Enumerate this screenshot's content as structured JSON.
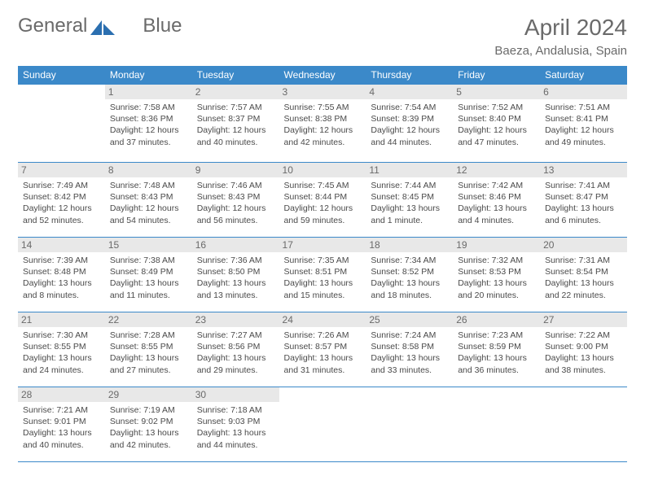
{
  "logo": {
    "text1": "General",
    "text2": "Blue",
    "brand_color": "#2b6fb0"
  },
  "title": "April 2024",
  "location": "Baeza, Andalusia, Spain",
  "colors": {
    "header_bg": "#3b89c9",
    "header_text": "#ffffff",
    "daynum_bg": "#e8e8e8",
    "text": "#4a4a4a",
    "rule": "#3b89c9"
  },
  "weekdays": [
    "Sunday",
    "Monday",
    "Tuesday",
    "Wednesday",
    "Thursday",
    "Friday",
    "Saturday"
  ],
  "start_offset": 1,
  "days": [
    {
      "n": 1,
      "sunrise": "7:58 AM",
      "sunset": "8:36 PM",
      "daylight": "12 hours and 37 minutes."
    },
    {
      "n": 2,
      "sunrise": "7:57 AM",
      "sunset": "8:37 PM",
      "daylight": "12 hours and 40 minutes."
    },
    {
      "n": 3,
      "sunrise": "7:55 AM",
      "sunset": "8:38 PM",
      "daylight": "12 hours and 42 minutes."
    },
    {
      "n": 4,
      "sunrise": "7:54 AM",
      "sunset": "8:39 PM",
      "daylight": "12 hours and 44 minutes."
    },
    {
      "n": 5,
      "sunrise": "7:52 AM",
      "sunset": "8:40 PM",
      "daylight": "12 hours and 47 minutes."
    },
    {
      "n": 6,
      "sunrise": "7:51 AM",
      "sunset": "8:41 PM",
      "daylight": "12 hours and 49 minutes."
    },
    {
      "n": 7,
      "sunrise": "7:49 AM",
      "sunset": "8:42 PM",
      "daylight": "12 hours and 52 minutes."
    },
    {
      "n": 8,
      "sunrise": "7:48 AM",
      "sunset": "8:43 PM",
      "daylight": "12 hours and 54 minutes."
    },
    {
      "n": 9,
      "sunrise": "7:46 AM",
      "sunset": "8:43 PM",
      "daylight": "12 hours and 56 minutes."
    },
    {
      "n": 10,
      "sunrise": "7:45 AM",
      "sunset": "8:44 PM",
      "daylight": "12 hours and 59 minutes."
    },
    {
      "n": 11,
      "sunrise": "7:44 AM",
      "sunset": "8:45 PM",
      "daylight": "13 hours and 1 minute."
    },
    {
      "n": 12,
      "sunrise": "7:42 AM",
      "sunset": "8:46 PM",
      "daylight": "13 hours and 4 minutes."
    },
    {
      "n": 13,
      "sunrise": "7:41 AM",
      "sunset": "8:47 PM",
      "daylight": "13 hours and 6 minutes."
    },
    {
      "n": 14,
      "sunrise": "7:39 AM",
      "sunset": "8:48 PM",
      "daylight": "13 hours and 8 minutes."
    },
    {
      "n": 15,
      "sunrise": "7:38 AM",
      "sunset": "8:49 PM",
      "daylight": "13 hours and 11 minutes."
    },
    {
      "n": 16,
      "sunrise": "7:36 AM",
      "sunset": "8:50 PM",
      "daylight": "13 hours and 13 minutes."
    },
    {
      "n": 17,
      "sunrise": "7:35 AM",
      "sunset": "8:51 PM",
      "daylight": "13 hours and 15 minutes."
    },
    {
      "n": 18,
      "sunrise": "7:34 AM",
      "sunset": "8:52 PM",
      "daylight": "13 hours and 18 minutes."
    },
    {
      "n": 19,
      "sunrise": "7:32 AM",
      "sunset": "8:53 PM",
      "daylight": "13 hours and 20 minutes."
    },
    {
      "n": 20,
      "sunrise": "7:31 AM",
      "sunset": "8:54 PM",
      "daylight": "13 hours and 22 minutes."
    },
    {
      "n": 21,
      "sunrise": "7:30 AM",
      "sunset": "8:55 PM",
      "daylight": "13 hours and 24 minutes."
    },
    {
      "n": 22,
      "sunrise": "7:28 AM",
      "sunset": "8:55 PM",
      "daylight": "13 hours and 27 minutes."
    },
    {
      "n": 23,
      "sunrise": "7:27 AM",
      "sunset": "8:56 PM",
      "daylight": "13 hours and 29 minutes."
    },
    {
      "n": 24,
      "sunrise": "7:26 AM",
      "sunset": "8:57 PM",
      "daylight": "13 hours and 31 minutes."
    },
    {
      "n": 25,
      "sunrise": "7:24 AM",
      "sunset": "8:58 PM",
      "daylight": "13 hours and 33 minutes."
    },
    {
      "n": 26,
      "sunrise": "7:23 AM",
      "sunset": "8:59 PM",
      "daylight": "13 hours and 36 minutes."
    },
    {
      "n": 27,
      "sunrise": "7:22 AM",
      "sunset": "9:00 PM",
      "daylight": "13 hours and 38 minutes."
    },
    {
      "n": 28,
      "sunrise": "7:21 AM",
      "sunset": "9:01 PM",
      "daylight": "13 hours and 40 minutes."
    },
    {
      "n": 29,
      "sunrise": "7:19 AM",
      "sunset": "9:02 PM",
      "daylight": "13 hours and 42 minutes."
    },
    {
      "n": 30,
      "sunrise": "7:18 AM",
      "sunset": "9:03 PM",
      "daylight": "13 hours and 44 minutes."
    }
  ],
  "labels": {
    "sunrise": "Sunrise:",
    "sunset": "Sunset:",
    "daylight": "Daylight:"
  }
}
